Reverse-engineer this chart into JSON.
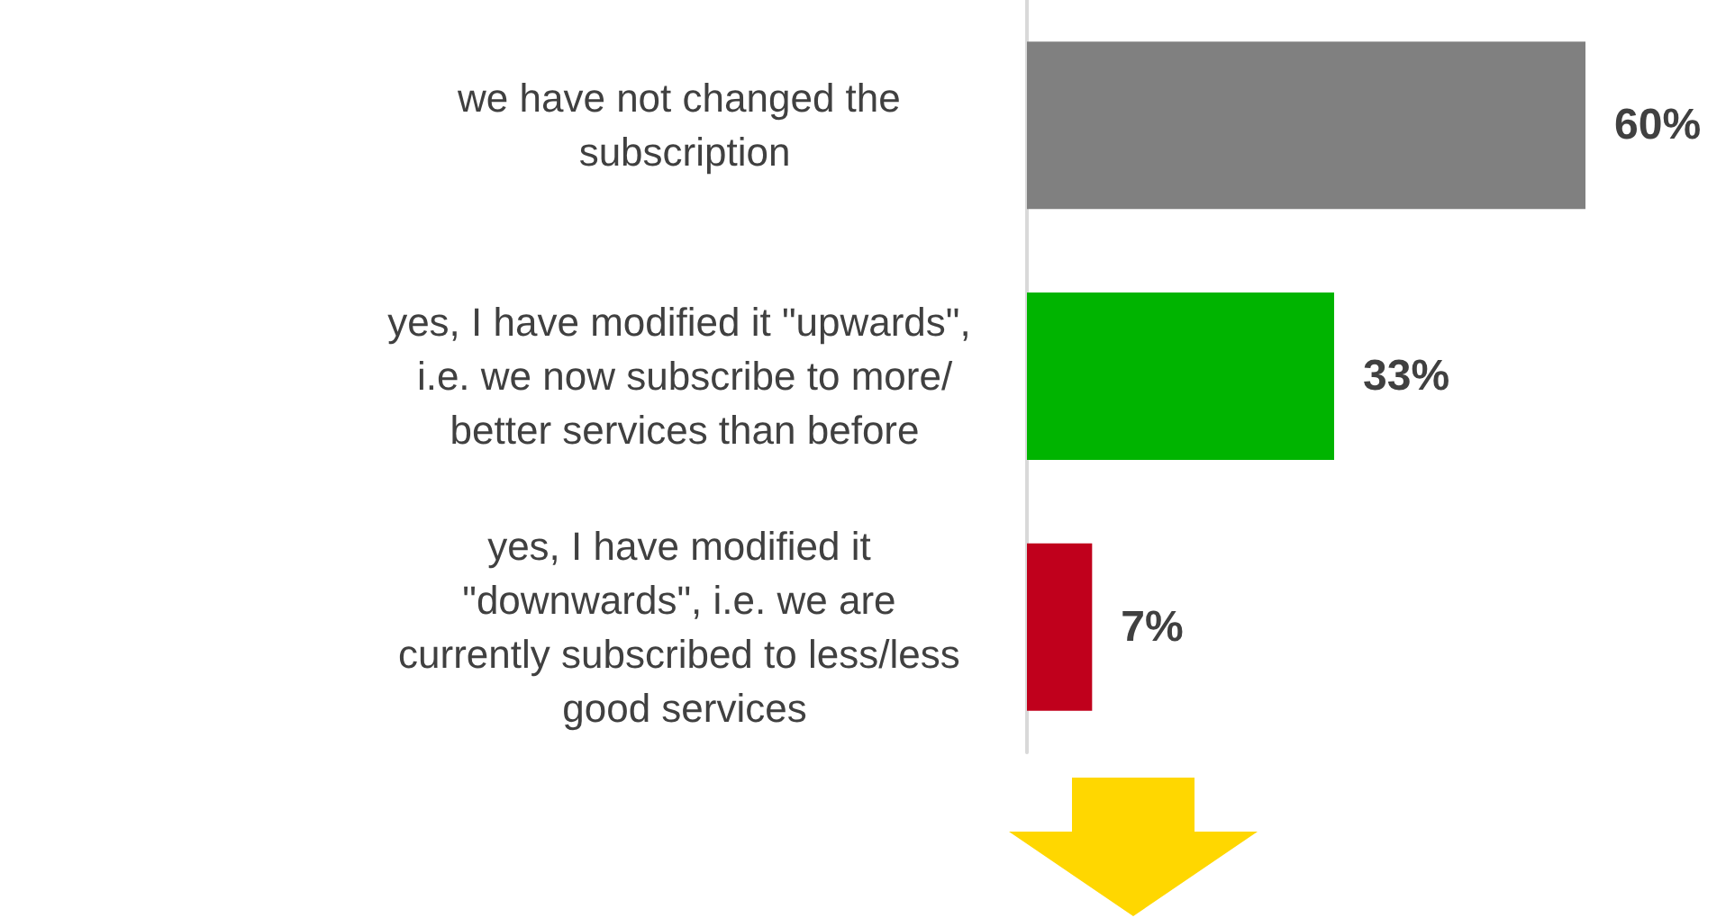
{
  "chart_data": {
    "type": "bar",
    "orientation": "horizontal",
    "categories": [
      "we have not changed the subscription",
      "yes, I have modified it \"upwards\", i.e. we now subscribe to more/better services than before",
      "yes, I have modified it \"downwards\", i.e. we are currently subscribed to less/less good services"
    ],
    "values": [
      60,
      33,
      7
    ],
    "colors": [
      "#808080",
      "#00b400",
      "#c0001c"
    ],
    "value_labels": [
      "60%",
      "33%",
      "7%"
    ],
    "tick_labels": "y"
  }
}
